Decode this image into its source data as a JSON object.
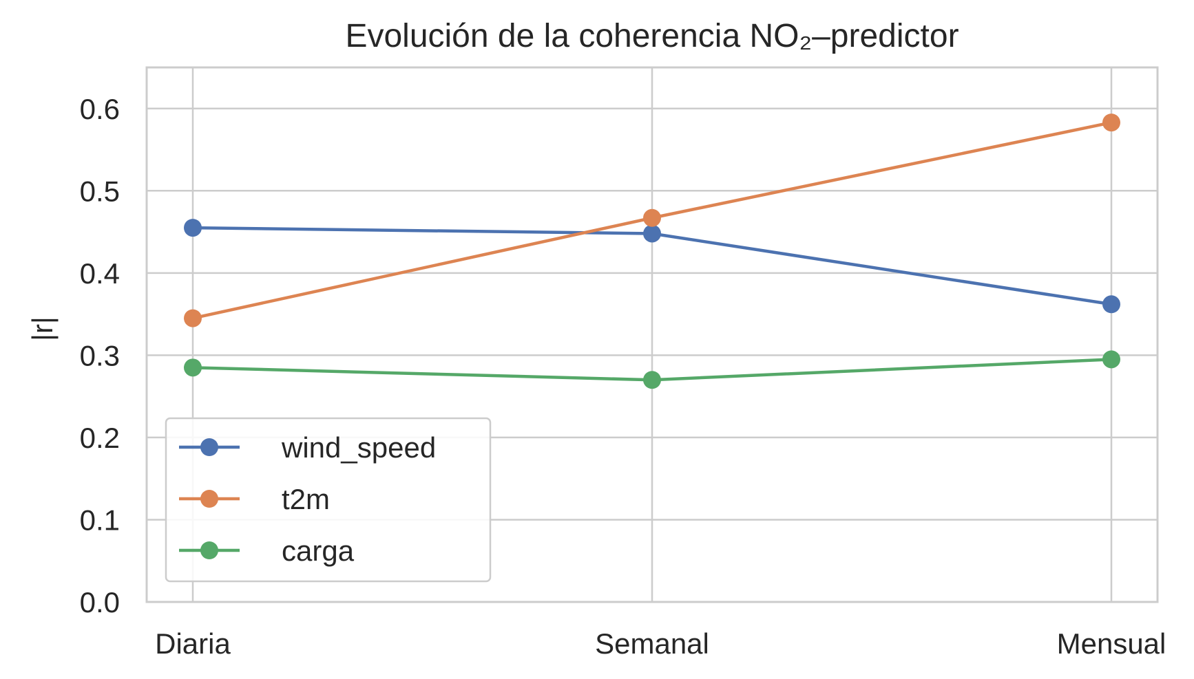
{
  "chart_data": {
    "type": "line",
    "title": "Evolución de la coherencia NO₂–predictor",
    "xlabel": "",
    "ylabel": "|r|",
    "categories": [
      "Diaria",
      "Semanal",
      "Mensual"
    ],
    "ylim": [
      0.0,
      0.65
    ],
    "yticks": [
      0.0,
      0.1,
      0.2,
      0.3,
      0.4,
      0.5,
      0.6
    ],
    "ytick_labels": [
      "0.0",
      "0.1",
      "0.2",
      "0.3",
      "0.4",
      "0.5",
      "0.6"
    ],
    "grid": true,
    "legend_position": "lower-left",
    "series": [
      {
        "name": "wind_speed",
        "color": "#4c72b0",
        "values": [
          0.455,
          0.448,
          0.362
        ]
      },
      {
        "name": "t2m",
        "color": "#dd8452",
        "values": [
          0.345,
          0.467,
          0.583
        ]
      },
      {
        "name": "carga",
        "color": "#55a868",
        "values": [
          0.285,
          0.27,
          0.295
        ]
      }
    ]
  }
}
